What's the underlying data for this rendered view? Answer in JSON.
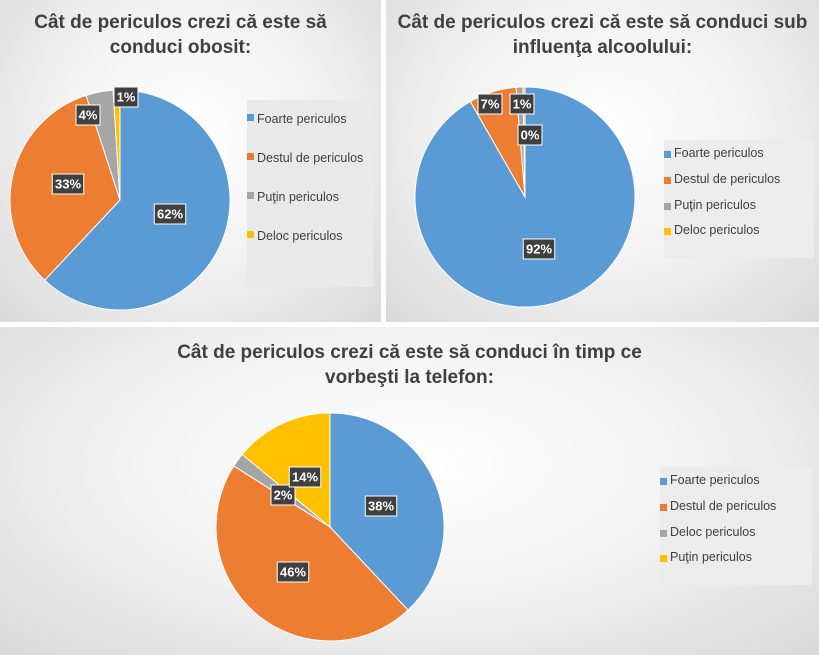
{
  "colors": {
    "blue": "#5b9bd5",
    "orange": "#ed7d31",
    "gray": "#a5a5a5",
    "yellow": "#ffc000",
    "label_bg": "#404040"
  },
  "chart_data": [
    {
      "type": "pie",
      "title": "Cât de periculos crezi că este să conduci obosit:",
      "categories": [
        "Foarte periculos",
        "Destul de periculos",
        "Puţin periculos",
        "Deloc periculos"
      ],
      "values": [
        62,
        33,
        4,
        1
      ],
      "labels": [
        "62%",
        "33%",
        "4%",
        "1%"
      ],
      "colors": [
        "#5b9bd5",
        "#ed7d31",
        "#a5a5a5",
        "#ffc000"
      ],
      "legend_position": "right"
    },
    {
      "type": "pie",
      "title": "Cât de periculos crezi că este să conduci sub influenţa alcoolului:",
      "categories": [
        "Foarte periculos",
        "Destul de periculos",
        "Puţin periculos",
        "Deloc periculos"
      ],
      "values": [
        92,
        7,
        1,
        0.3
      ],
      "labels": [
        "92%",
        "7%",
        "1%",
        "0%"
      ],
      "colors": [
        "#5b9bd5",
        "#ed7d31",
        "#a5a5a5",
        "#ffc000"
      ],
      "legend_position": "right"
    },
    {
      "type": "pie",
      "title": "Cât de periculos crezi că este să conduci în timp ce vorbeşti la telefon:",
      "categories": [
        "Foarte periculos",
        "Destul de periculos",
        "Deloc periculos",
        "Puţin periculos"
      ],
      "values": [
        38,
        46,
        2,
        14
      ],
      "labels": [
        "38%",
        "46%",
        "2%",
        "14%"
      ],
      "colors": [
        "#5b9bd5",
        "#ed7d31",
        "#a5a5a5",
        "#ffc000"
      ],
      "legend_position": "right"
    }
  ],
  "legend_labels": [
    [
      "Foarte periculos",
      "Destul de periculos",
      "Puţin periculos",
      "Deloc periculos"
    ],
    [
      "Foarte periculos",
      "Destul de periculos",
      "Puţin periculos",
      "Deloc periculos"
    ],
    [
      "Foarte periculos",
      "Destul de periculos",
      "Deloc periculos",
      "Puţin periculos"
    ]
  ]
}
